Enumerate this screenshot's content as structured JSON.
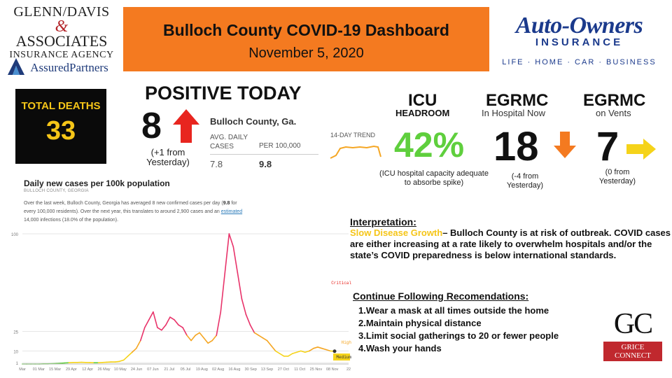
{
  "sponsor_left": {
    "line1": "GLENN/DAVIS",
    "amp": "&",
    "line2": "ASSOCIATES",
    "line3": "INSURANCE AGENCY",
    "line4": "AssuredPartners"
  },
  "header": {
    "title": "Bulloch County COVID-19 Dashboard",
    "date": "November 5, 2020"
  },
  "sponsor_right": {
    "brand": "Auto-Owners",
    "sub": "INSURANCE",
    "tagline": "LIFE · HOME · CAR · BUSINESS"
  },
  "total_deaths": {
    "label": "TOTAL DEATHS",
    "value": "33"
  },
  "positive_today": {
    "title": "POSITIVE TODAY",
    "value": "8",
    "delta": "(+1 from Yesterday)",
    "arrow": "up-arrow",
    "arrow_color": "#e8251f"
  },
  "county_stats": {
    "name": "Bulloch County, Ga.",
    "col1_header": "AVG. DAILY CASES",
    "col2_header": "PER 100,000",
    "col1_value": "7.8",
    "col2_value": "9.8",
    "trend_label": "14-DAY TREND"
  },
  "icu": {
    "title": "ICU",
    "subtitle": "HEADROOM",
    "value": "42%",
    "note": "(ICU hospital capacity adequate to absorbe spike)",
    "value_color": "#5fcf3d"
  },
  "egrmc_hospital": {
    "title": "EGRMC",
    "subtitle": "In Hospital Now",
    "value": "18",
    "delta": "(-4  from Yesterday)",
    "arrow": "down-arrow",
    "arrow_color": "#f47a20"
  },
  "egrmc_vents": {
    "title": "EGRMC",
    "subtitle": "on Vents",
    "value": "7",
    "delta": "(0 from Yesterday)",
    "arrow": "right-arrow",
    "arrow_color": "#f5d31a"
  },
  "chart_panel": {
    "title": "Daily new cases per 100k population",
    "subtitle": "BULLOCH COUNTY, GEORGIA",
    "desc_1": "Over the last week, Bulloch County, Georgia has averaged 8 new confirmed cases per day (",
    "desc_bold": "9.8",
    "desc_2": " for every 100,000 residents). Over the next year, this translates to around 2,900 cases and an ",
    "desc_link": "estimated",
    "desc_3": " 14,000 infections (18.0% of the population)."
  },
  "chart_data": {
    "type": "line",
    "title": "Daily new cases per 100k population",
    "x_ticks": [
      "Mar",
      "01 Mar",
      "15 Mar",
      "29 Apr",
      "12 Apr",
      "26 May",
      "10 May",
      "24 Jun",
      "07 Jun",
      "21 Jul",
      "05 Jul",
      "19 Aug",
      "02 Aug",
      "16 Aug",
      "30 Sep",
      "13 Sep",
      "27 Oct",
      "11 Oct",
      "25 Nov",
      "08 Nov",
      "22"
    ],
    "y_ticks": [
      1,
      10,
      25,
      100
    ],
    "y_tick_labels": [
      "1",
      "10",
      "25",
      "100"
    ],
    "ylim": [
      0,
      100
    ],
    "zones": [
      {
        "label": "Critical",
        "color": "#e8251f"
      },
      {
        "label": "High",
        "color": "#f5a623"
      },
      {
        "label": "Medium",
        "color": "#f5d31a"
      }
    ],
    "series": [
      {
        "values": [
          0,
          0,
          0,
          0,
          0,
          0.1,
          0.1,
          0.2,
          0.3,
          0.5,
          0.8,
          1,
          1.2,
          1.2,
          1.3,
          1.2,
          1.1,
          1,
          1,
          1.2,
          1.4,
          1.6,
          1.6,
          2,
          3,
          6,
          9,
          12,
          18,
          28,
          34,
          40,
          28,
          26,
          30,
          36,
          34,
          30,
          28,
          22,
          18,
          22,
          24,
          20,
          16,
          18,
          22,
          40,
          70,
          100,
          90,
          70,
          50,
          38,
          30,
          24,
          22,
          20,
          18,
          14,
          10,
          8,
          6,
          6,
          8,
          9,
          10,
          9,
          10,
          12,
          13,
          12,
          11,
          10,
          9.8
        ]
      }
    ]
  },
  "interpretation": {
    "heading": "Interpretation:",
    "status": "Slow Disease Growth",
    "text": "– Bulloch County is at risk of outbreak. COVID cases are either increasing at a rate likely to overwhelm hospitals and/or the state’s COVID preparedness is below international standards."
  },
  "recommendations": {
    "heading": "Continue Following Recomendations:",
    "items": [
      "1.Wear a mask at all times outside the home",
      "2.Maintain physical distance",
      "3.Limit social gatherings to 20 or fewer people",
      "4.Wash your hands"
    ]
  },
  "sponsor_bottom": {
    "mark": "GC",
    "line1": "GRICE",
    "line2": "CONNECT"
  }
}
